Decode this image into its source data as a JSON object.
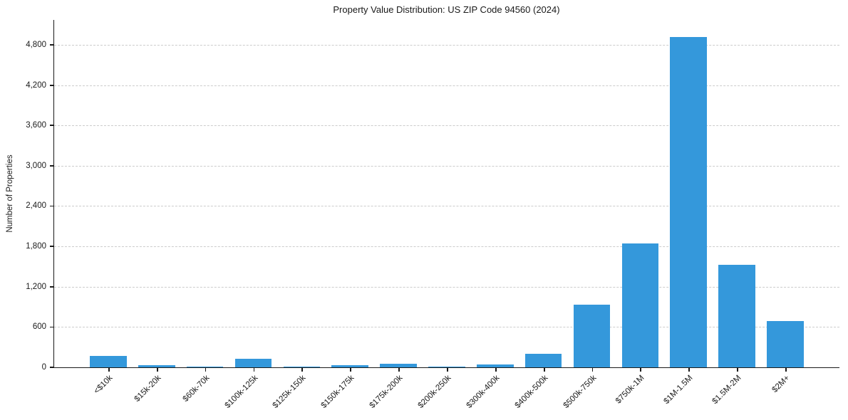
{
  "figure": {
    "background": "#ffffff"
  },
  "chart_data": {
    "type": "bar",
    "title": "Property Value Distribution: US ZIP Code 94560 (2024)",
    "xlabel": "",
    "ylabel": "Number of Properties",
    "categories": [
      "<$10k",
      "$15k-20k",
      "$60k-70k",
      "$100k-125k",
      "$125k-150k",
      "$150k-175k",
      "$175k-200k",
      "$200k-250k",
      "$300k-400k",
      "$400k-500k",
      "$500k-750k",
      "$750k-1M",
      "$1M-1.5M",
      "$1.5M-2M",
      "$2M+"
    ],
    "values": [
      165,
      35,
      15,
      125,
      10,
      35,
      48,
      13,
      45,
      200,
      935,
      1840,
      4920,
      1525,
      685
    ],
    "ylim": [
      0,
      5170
    ],
    "y_ticks": [
      0,
      600,
      1200,
      1800,
      2400,
      3000,
      3600,
      4200,
      4800
    ],
    "y_tick_labels": [
      "0",
      "600",
      "1,200",
      "1,800",
      "2,400",
      "3,000",
      "3,600",
      "4,200",
      "4,800"
    ],
    "bar_color": "#3498db",
    "grid": "horizontal-dashed",
    "legend_position": "none"
  }
}
